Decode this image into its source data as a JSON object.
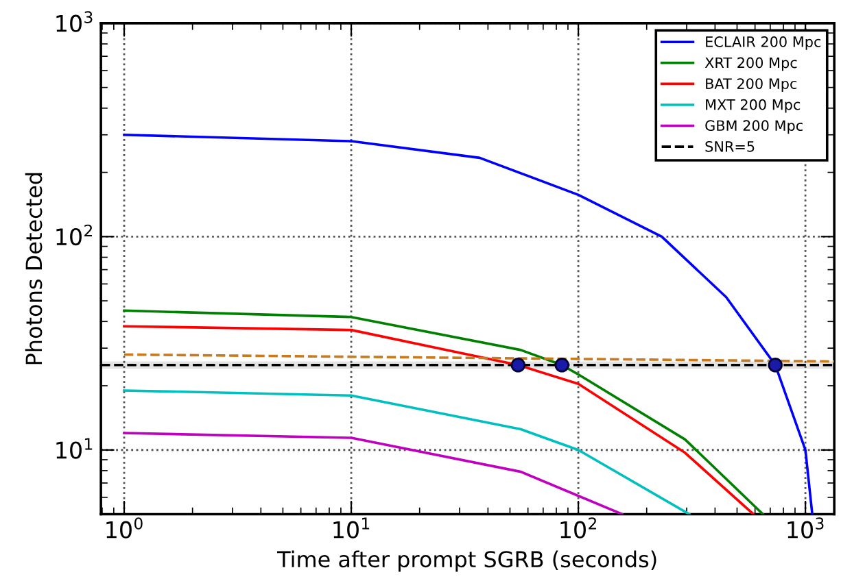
{
  "chart_data": {
    "type": "line",
    "xlabel": "Time after prompt SGRB (seconds)",
    "ylabel": "Photons Detected",
    "log": "xy",
    "grid": true,
    "legend": "top right",
    "xlim": [
      0.79,
      1340
    ],
    "ylim": [
      5,
      1000
    ],
    "xticks": [
      {
        "value": 1,
        "label": "10$^{0}$"
      },
      {
        "value": 10,
        "label": "10$^{1}$"
      },
      {
        "value": 100,
        "label": "10$^{2}$"
      },
      {
        "value": 1000,
        "label": "10$^{3}$"
      }
    ],
    "yticks": [
      {
        "value": 10,
        "label": "10$^{1}$"
      },
      {
        "value": 100,
        "label": "10$^{2}$"
      },
      {
        "value": 1000,
        "label": "10$^{3}$"
      }
    ],
    "bands": [
      {
        "axis": "y",
        "from": 24,
        "to": 26,
        "color": "#e4e4e4"
      }
    ],
    "series": [
      {
        "name": "ECLAIR 200 Mpc",
        "color": "#0000ff",
        "x": [
          1,
          10,
          36.8,
          100,
          233,
          448,
          737,
          1000,
          1072
        ],
        "values": [
          300,
          280,
          234,
          157,
          100,
          52,
          25,
          10,
          5
        ]
      },
      {
        "name": "XRT 200 Mpc",
        "color": "#008000",
        "x": [
          1,
          10,
          55.9,
          84.7,
          100,
          295,
          650
        ],
        "values": [
          45,
          42,
          29.4,
          25,
          22.6,
          11.2,
          5
        ]
      },
      {
        "name": "BAT 200 Mpc",
        "color": "#ff0000",
        "x": [
          1,
          10,
          54.3,
          100,
          295,
          590
        ],
        "values": [
          38,
          36.5,
          25,
          20.4,
          9.7,
          5
        ]
      },
      {
        "name": "MXT 200 Mpc",
        "color": "#00bfbf",
        "x": [
          1,
          10,
          55.9,
          100,
          308
        ],
        "values": [
          19,
          18,
          12.5,
          10,
          5
        ]
      },
      {
        "name": "GBM 200 Mpc",
        "color": "#bf00bf",
        "x": [
          1,
          10,
          55.9,
          156
        ],
        "values": [
          12,
          11.4,
          7.9,
          5
        ]
      },
      {
        "name": "SNR=5",
        "color": "#000000",
        "line_style": "dashed",
        "x": [
          0.79,
          1340
        ],
        "values": [
          25,
          25
        ]
      },
      {
        "color": "#c87a1e",
        "line_style": "dashed",
        "x": [
          1,
          1340
        ],
        "values": [
          28,
          26
        ]
      },
      {
        "type": "scatter",
        "marker": "circle",
        "color": "#1a1aa8",
        "x": [
          54.3,
          84.7,
          737
        ],
        "values": [
          25,
          25,
          25
        ]
      }
    ]
  }
}
